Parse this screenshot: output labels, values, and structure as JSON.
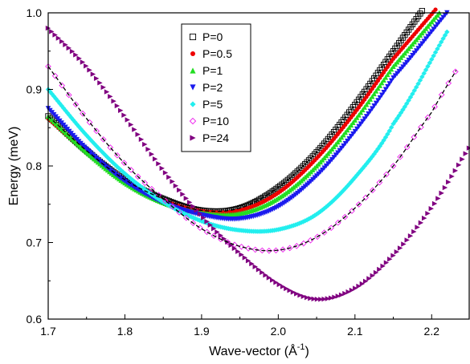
{
  "chart_data": {
    "type": "scatter",
    "title": "",
    "xlabel": "Wave-vector (Å",
    "xlabel_sup": "-1",
    "xlabel_close": ")",
    "ylabel": "Energy (meV)",
    "xlim": [
      1.7,
      2.25
    ],
    "ylim": [
      0.6,
      1.0
    ],
    "x_ticks": [
      1.7,
      1.8,
      1.9,
      2.0,
      2.1,
      2.2
    ],
    "x_tick_labels": [
      "1.7",
      "1.8",
      "1.9",
      "2.0",
      "2.1",
      "2.2"
    ],
    "y_ticks": [
      0.6,
      0.7,
      0.8,
      0.9,
      1.0
    ],
    "y_tick_labels": [
      "0.6",
      "0.7",
      "0.8",
      "0.9",
      "1.0"
    ],
    "grid": false,
    "legend_position": "top-center",
    "fit_line_color": "#000000",
    "series": [
      {
        "name": "P=0",
        "color": "#000000",
        "marker": "open-square",
        "x": [
          1.7,
          1.75,
          1.8,
          1.85,
          1.9,
          1.95,
          2.0,
          2.05,
          2.1,
          2.15,
          2.2
        ],
        "y": [
          0.865,
          0.82,
          0.782,
          0.757,
          0.742,
          0.745,
          0.772,
          0.818,
          0.88,
          0.95,
          1.02
        ]
      },
      {
        "name": "P=0.5",
        "color": "#ee0000",
        "marker": "circle",
        "x": [
          1.7,
          1.75,
          1.8,
          1.85,
          1.9,
          1.95,
          2.0,
          2.05,
          2.1,
          2.15,
          2.21
        ],
        "y": [
          0.862,
          0.818,
          0.78,
          0.755,
          0.741,
          0.742,
          0.765,
          0.81,
          0.87,
          0.94,
          1.01
        ]
      },
      {
        "name": "P=1",
        "color": "#22dd22",
        "marker": "triangle-up",
        "x": [
          1.7,
          1.75,
          1.8,
          1.85,
          1.9,
          1.95,
          2.0,
          2.05,
          2.1,
          2.15,
          2.21
        ],
        "y": [
          0.865,
          0.818,
          0.778,
          0.752,
          0.739,
          0.738,
          0.758,
          0.8,
          0.86,
          0.93,
          1.0
        ]
      },
      {
        "name": "P=2",
        "color": "#1a1aee",
        "marker": "triangle-down",
        "x": [
          1.7,
          1.75,
          1.8,
          1.85,
          1.9,
          1.95,
          2.0,
          2.05,
          2.1,
          2.15,
          2.22
        ],
        "y": [
          0.875,
          0.822,
          0.78,
          0.752,
          0.736,
          0.731,
          0.747,
          0.787,
          0.845,
          0.915,
          1.0
        ]
      },
      {
        "name": "P=5",
        "color": "#22eeee",
        "marker": "diamond",
        "x": [
          1.7,
          1.75,
          1.8,
          1.85,
          1.9,
          1.95,
          2.0,
          2.05,
          2.1,
          2.15,
          2.22
        ],
        "y": [
          0.9,
          0.84,
          0.79,
          0.753,
          0.728,
          0.716,
          0.717,
          0.737,
          0.785,
          0.855,
          0.975
        ]
      },
      {
        "name": "P=10",
        "color": "#ee22ee",
        "marker": "open-diamond",
        "x": [
          1.7,
          1.75,
          1.8,
          1.85,
          1.9,
          1.95,
          2.0,
          2.05,
          2.1,
          2.15,
          2.2,
          2.235
        ],
        "y": [
          0.93,
          0.862,
          0.803,
          0.757,
          0.718,
          0.695,
          0.69,
          0.707,
          0.745,
          0.8,
          0.87,
          0.93
        ]
      },
      {
        "name": "P=24",
        "color": "#800080",
        "marker": "triangle-right",
        "x": [
          1.7,
          1.75,
          1.8,
          1.85,
          1.9,
          1.95,
          2.0,
          2.05,
          2.1,
          2.15,
          2.2,
          2.25
        ],
        "y": [
          0.98,
          0.93,
          0.865,
          0.795,
          0.735,
          0.686,
          0.646,
          0.626,
          0.64,
          0.683,
          0.745,
          0.825
        ]
      }
    ]
  }
}
